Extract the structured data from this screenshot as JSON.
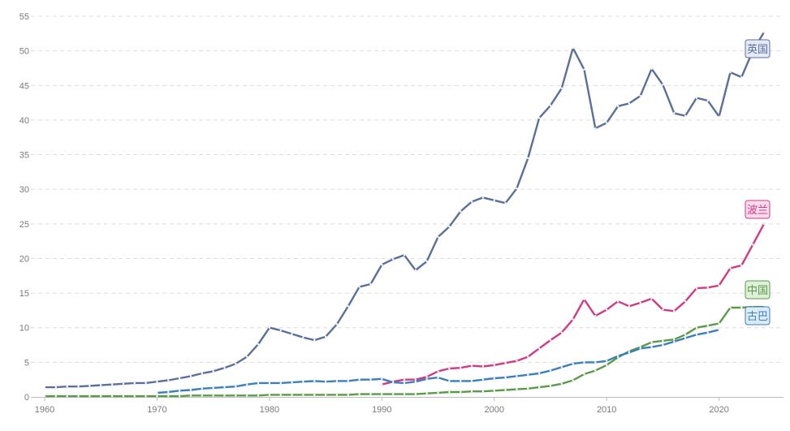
{
  "chart_data": {
    "type": "line",
    "title": "",
    "xlabel": "",
    "ylabel": "",
    "xlim": [
      1960,
      2024
    ],
    "ylim": [
      0,
      55
    ],
    "x_ticks": [
      1960,
      1970,
      1980,
      1990,
      2000,
      2010,
      2020
    ],
    "y_ticks": [
      0,
      5,
      10,
      15,
      20,
      25,
      30,
      35,
      40,
      45,
      50,
      55
    ],
    "grid": "horizontal-dashed",
    "series": [
      {
        "name": "英国",
        "color": "#5b6f9b",
        "label_bg": "#e5eaf6",
        "x": [
          1960,
          1961,
          1962,
          1963,
          1964,
          1965,
          1966,
          1967,
          1968,
          1969,
          1970,
          1971,
          1972,
          1973,
          1974,
          1975,
          1976,
          1977,
          1978,
          1979,
          1980,
          1981,
          1982,
          1983,
          1984,
          1985,
          1986,
          1987,
          1988,
          1989,
          1990,
          1991,
          1992,
          1993,
          1994,
          1995,
          1996,
          1997,
          1998,
          1999,
          2000,
          2001,
          2002,
          2003,
          2004,
          2005,
          2006,
          2007,
          2008,
          2009,
          2010,
          2011,
          2012,
          2013,
          2014,
          2015,
          2016,
          2017,
          2018,
          2019,
          2020,
          2021,
          2022,
          2023,
          2024
        ],
        "values": [
          1.4,
          1.4,
          1.5,
          1.5,
          1.6,
          1.7,
          1.8,
          1.9,
          2.0,
          2.0,
          2.2,
          2.4,
          2.7,
          3.0,
          3.4,
          3.7,
          4.2,
          4.8,
          5.8,
          7.6,
          10.0,
          9.6,
          9.1,
          8.6,
          8.2,
          8.7,
          10.5,
          13.1,
          15.9,
          16.3,
          19.1,
          19.9,
          20.5,
          18.3,
          19.6,
          23.1,
          24.6,
          26.8,
          28.2,
          28.8,
          28.4,
          28.0,
          30.1,
          34.5,
          40.3,
          42.1,
          44.6,
          50.4,
          47.3,
          38.8,
          39.6,
          42.0,
          42.4,
          43.5,
          47.4,
          45.1,
          41.0,
          40.6,
          43.2,
          42.8,
          40.5,
          46.9,
          46.2,
          50.0,
          52.7
        ]
      },
      {
        "name": "波兰",
        "color": "#d23a85",
        "label_bg": "#f9dceb",
        "x": [
          1990,
          1991,
          1992,
          1993,
          1994,
          1995,
          1996,
          1997,
          1998,
          1999,
          2000,
          2001,
          2002,
          2003,
          2004,
          2005,
          2006,
          2007,
          2008,
          2009,
          2010,
          2011,
          2012,
          2013,
          2014,
          2015,
          2016,
          2017,
          2018,
          2019,
          2020,
          2021,
          2022,
          2023,
          2024
        ],
        "values": [
          1.8,
          2.2,
          2.5,
          2.5,
          2.9,
          3.7,
          4.1,
          4.2,
          4.5,
          4.4,
          4.6,
          4.9,
          5.2,
          5.8,
          7.0,
          8.2,
          9.3,
          11.2,
          14.1,
          11.7,
          12.6,
          13.8,
          13.1,
          13.6,
          14.2,
          12.6,
          12.4,
          13.8,
          15.7,
          15.8,
          16.1,
          18.6,
          19.0,
          22.0,
          25.0
        ]
      },
      {
        "name": "中国",
        "color": "#5a9a48",
        "label_bg": "#e0efd9",
        "x": [
          1960,
          1961,
          1962,
          1963,
          1964,
          1965,
          1966,
          1967,
          1968,
          1969,
          1970,
          1971,
          1972,
          1973,
          1974,
          1975,
          1976,
          1977,
          1978,
          1979,
          1980,
          1981,
          1982,
          1983,
          1984,
          1985,
          1986,
          1987,
          1988,
          1989,
          1990,
          1991,
          1992,
          1993,
          1994,
          1995,
          1996,
          1997,
          1998,
          1999,
          2000,
          2001,
          2002,
          2003,
          2004,
          2005,
          2006,
          2007,
          2008,
          2009,
          2010,
          2011,
          2012,
          2013,
          2014,
          2015,
          2016,
          2017,
          2018,
          2019,
          2020,
          2021,
          2022,
          2023,
          2024
        ],
        "values": [
          0.1,
          0.1,
          0.1,
          0.1,
          0.1,
          0.1,
          0.1,
          0.1,
          0.1,
          0.1,
          0.1,
          0.1,
          0.1,
          0.2,
          0.2,
          0.2,
          0.2,
          0.2,
          0.2,
          0.2,
          0.3,
          0.3,
          0.3,
          0.3,
          0.3,
          0.3,
          0.3,
          0.3,
          0.4,
          0.4,
          0.4,
          0.4,
          0.4,
          0.4,
          0.5,
          0.6,
          0.7,
          0.7,
          0.8,
          0.8,
          0.9,
          1.0,
          1.1,
          1.2,
          1.4,
          1.6,
          1.9,
          2.4,
          3.3,
          3.8,
          4.6,
          5.7,
          6.6,
          7.2,
          7.9,
          8.1,
          8.3,
          9.0,
          10.0,
          10.3,
          10.6,
          12.9,
          12.9,
          13.0,
          13.0
        ]
      },
      {
        "name": "古巴",
        "color": "#3b7fba",
        "label_bg": "#dcebf7",
        "x": [
          1970,
          1971,
          1972,
          1973,
          1974,
          1975,
          1976,
          1977,
          1978,
          1979,
          1980,
          1981,
          1982,
          1983,
          1984,
          1985,
          1986,
          1987,
          1988,
          1989,
          1990,
          1991,
          1992,
          1993,
          1994,
          1995,
          1996,
          1997,
          1998,
          1999,
          2000,
          2001,
          2002,
          2003,
          2004,
          2005,
          2006,
          2007,
          2008,
          2009,
          2010,
          2011,
          2012,
          2013,
          2014,
          2015,
          2016,
          2017,
          2018,
          2019,
          2020
        ],
        "values": [
          0.6,
          0.7,
          0.9,
          1.0,
          1.2,
          1.3,
          1.4,
          1.5,
          1.8,
          2.0,
          2.0,
          2.0,
          2.1,
          2.2,
          2.3,
          2.2,
          2.3,
          2.3,
          2.5,
          2.5,
          2.6,
          2.1,
          2.0,
          2.2,
          2.6,
          2.8,
          2.3,
          2.3,
          2.3,
          2.5,
          2.7,
          2.8,
          3.0,
          3.2,
          3.4,
          3.8,
          4.3,
          4.8,
          5.0,
          5.0,
          5.2,
          5.9,
          6.4,
          7.0,
          7.2,
          7.5,
          8.0,
          8.5,
          9.0,
          9.3,
          9.7
        ]
      }
    ]
  }
}
